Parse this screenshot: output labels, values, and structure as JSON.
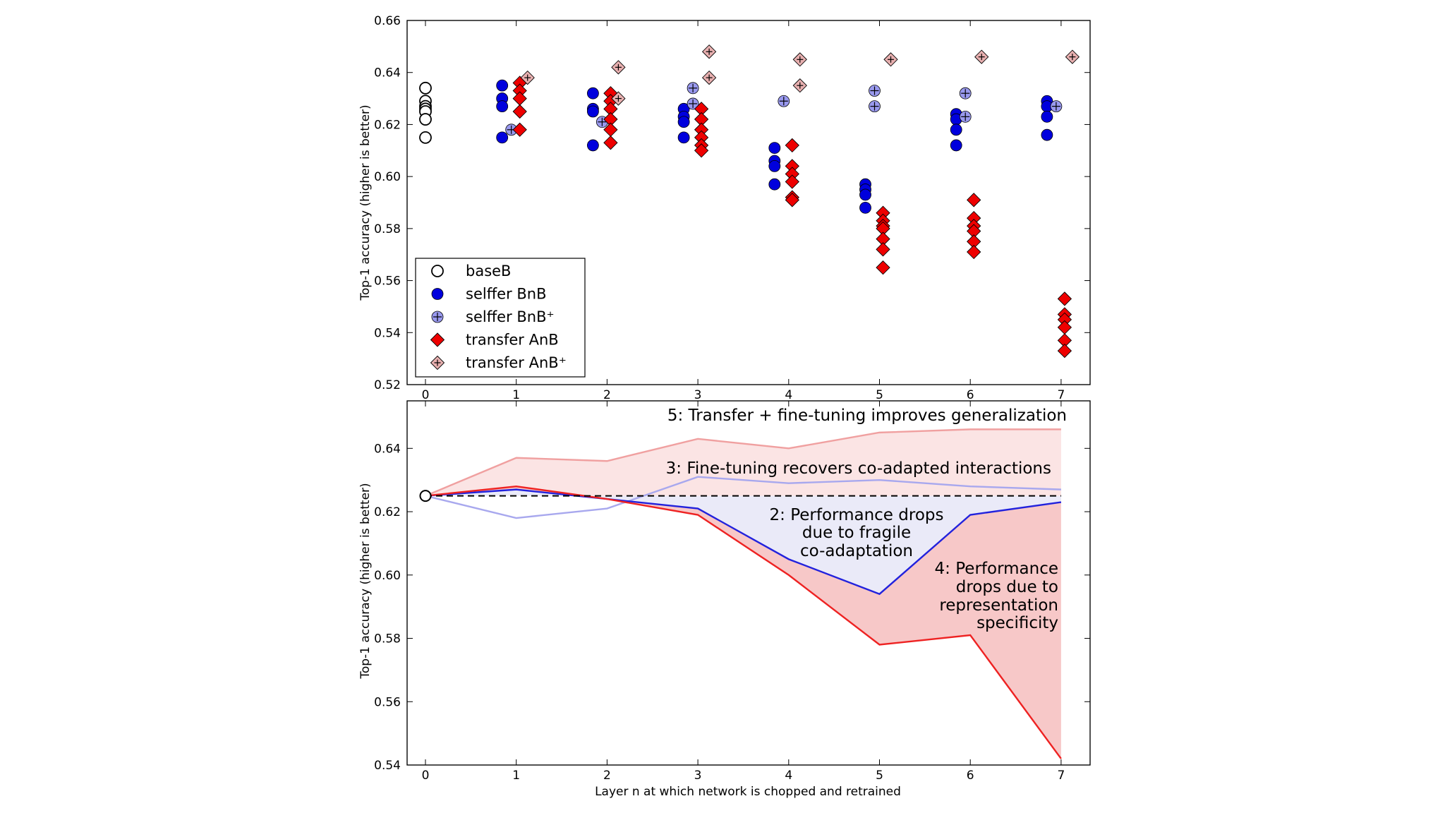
{
  "chart_data": [
    {
      "type": "scatter",
      "ylabel": "Top-1 accuracy (higher is better)",
      "xlabel": "",
      "xlim": [
        0,
        7
      ],
      "ylim": [
        0.52,
        0.66
      ],
      "xticks": [
        "0",
        "1",
        "2",
        "3",
        "4",
        "5",
        "6",
        "7"
      ],
      "yticks": [
        "0.52",
        "0.54",
        "0.56",
        "0.58",
        "0.60",
        "0.62",
        "0.64",
        "0.66"
      ],
      "legend_position": "lower-left",
      "series": [
        {
          "name": "baseB",
          "marker": "open-circle",
          "color": "#ffffff",
          "points": [
            [
              0,
              0.634
            ],
            [
              0,
              0.629
            ],
            [
              0,
              0.627
            ],
            [
              0,
              0.626
            ],
            [
              0,
              0.625
            ],
            [
              0,
              0.622
            ],
            [
              0,
              0.615
            ]
          ]
        },
        {
          "name": "selffer BnB",
          "marker": "circle",
          "color": "#0000dd",
          "points": [
            [
              1,
              0.635
            ],
            [
              1,
              0.63
            ],
            [
              1,
              0.627
            ],
            [
              1,
              0.615
            ],
            [
              2,
              0.632
            ],
            [
              2,
              0.626
            ],
            [
              2,
              0.625
            ],
            [
              2,
              0.612
            ],
            [
              3,
              0.626
            ],
            [
              3,
              0.623
            ],
            [
              3,
              0.621
            ],
            [
              3,
              0.615
            ],
            [
              4,
              0.611
            ],
            [
              4,
              0.606
            ],
            [
              4,
              0.604
            ],
            [
              4,
              0.597
            ],
            [
              5,
              0.597
            ],
            [
              5,
              0.595
            ],
            [
              5,
              0.593
            ],
            [
              5,
              0.588
            ],
            [
              6,
              0.624
            ],
            [
              6,
              0.622
            ],
            [
              6,
              0.618
            ],
            [
              6,
              0.612
            ],
            [
              7,
              0.629
            ],
            [
              7,
              0.627
            ],
            [
              7,
              0.623
            ],
            [
              7,
              0.616
            ]
          ]
        },
        {
          "name": "selffer BnB⁺",
          "marker": "plus-circle",
          "color": "#9999ee",
          "points": [
            [
              1,
              0.618
            ],
            [
              2,
              0.621
            ],
            [
              3,
              0.634
            ],
            [
              3,
              0.628
            ],
            [
              4,
              0.629
            ],
            [
              5,
              0.633
            ],
            [
              5,
              0.627
            ],
            [
              6,
              0.632
            ],
            [
              6,
              0.623
            ],
            [
              7,
              0.627
            ]
          ]
        },
        {
          "name": "transfer AnB",
          "marker": "diamond",
          "color": "#ee0000",
          "points": [
            [
              1,
              0.636
            ],
            [
              1,
              0.633
            ],
            [
              1,
              0.63
            ],
            [
              1,
              0.625
            ],
            [
              1,
              0.618
            ],
            [
              2,
              0.632
            ],
            [
              2,
              0.629
            ],
            [
              2,
              0.626
            ],
            [
              2,
              0.622
            ],
            [
              2,
              0.618
            ],
            [
              2,
              0.613
            ],
            [
              3,
              0.626
            ],
            [
              3,
              0.622
            ],
            [
              3,
              0.618
            ],
            [
              3,
              0.615
            ],
            [
              3,
              0.612
            ],
            [
              3,
              0.61
            ],
            [
              4,
              0.612
            ],
            [
              4,
              0.604
            ],
            [
              4,
              0.601
            ],
            [
              4,
              0.598
            ],
            [
              4,
              0.592
            ],
            [
              4,
              0.591
            ],
            [
              5,
              0.586
            ],
            [
              5,
              0.583
            ],
            [
              5,
              0.581
            ],
            [
              5,
              0.58
            ],
            [
              5,
              0.576
            ],
            [
              5,
              0.572
            ],
            [
              5,
              0.565
            ],
            [
              6,
              0.591
            ],
            [
              6,
              0.584
            ],
            [
              6,
              0.581
            ],
            [
              6,
              0.579
            ],
            [
              6,
              0.575
            ],
            [
              6,
              0.571
            ],
            [
              7,
              0.553
            ],
            [
              7,
              0.547
            ],
            [
              7,
              0.545
            ],
            [
              7,
              0.542
            ],
            [
              7,
              0.537
            ],
            [
              7,
              0.533
            ]
          ]
        },
        {
          "name": "transfer AnB⁺",
          "marker": "plus-diamond",
          "color": "#e8b0b0",
          "points": [
            [
              1,
              0.638
            ],
            [
              2,
              0.642
            ],
            [
              2,
              0.63
            ],
            [
              3,
              0.648
            ],
            [
              3,
              0.638
            ],
            [
              4,
              0.645
            ],
            [
              4,
              0.635
            ],
            [
              5,
              0.645
            ],
            [
              6,
              0.646
            ],
            [
              7,
              0.646
            ]
          ]
        }
      ]
    },
    {
      "type": "line",
      "ylabel": "Top-1 accuracy (higher is better)",
      "xlabel": "Layer n at which network is chopped and retrained",
      "xlim": [
        0,
        7
      ],
      "ylim": [
        0.54,
        0.655
      ],
      "xticks": [
        "0",
        "1",
        "2",
        "3",
        "4",
        "5",
        "6",
        "7"
      ],
      "yticks": [
        "0.54",
        "0.56",
        "0.58",
        "0.60",
        "0.62",
        "0.64"
      ],
      "x": [
        0,
        1,
        2,
        3,
        4,
        5,
        6,
        7
      ],
      "baseline": {
        "value": 0.625,
        "style": "dashed",
        "color": "#000000"
      },
      "series": [
        {
          "name": "",
          "color": "#f0a0a0",
          "values": [
            0.625,
            0.637,
            0.636,
            0.643,
            0.64,
            0.645,
            0.646,
            0.646
          ]
        },
        {
          "name": "",
          "color": "#a8a8ee",
          "values": [
            0.625,
            0.618,
            0.621,
            0.631,
            0.629,
            0.63,
            0.628,
            0.627
          ]
        },
        {
          "name": "",
          "color": "#2222dd",
          "values": [
            0.625,
            0.627,
            0.624,
            0.621,
            0.605,
            0.594,
            0.619,
            0.623
          ]
        },
        {
          "name": "",
          "color": "#ee2222",
          "values": [
            0.625,
            0.628,
            0.624,
            0.619,
            0.6,
            0.578,
            0.581,
            0.542
          ]
        }
      ],
      "annotations": [
        "5: Transfer + fine-tuning improves generalization",
        "3: Fine-tuning recovers co-adapted interactions",
        "2: Performance drops",
        "due to fragile",
        "co-adaptation",
        "4: Performance",
        "drops due to",
        "representation",
        "specificity"
      ]
    }
  ],
  "colors": {
    "selffer_fill": "#eaeaf8",
    "transfer_fill": "#f7c8c8",
    "improve_fill": "#fbe4e4"
  }
}
